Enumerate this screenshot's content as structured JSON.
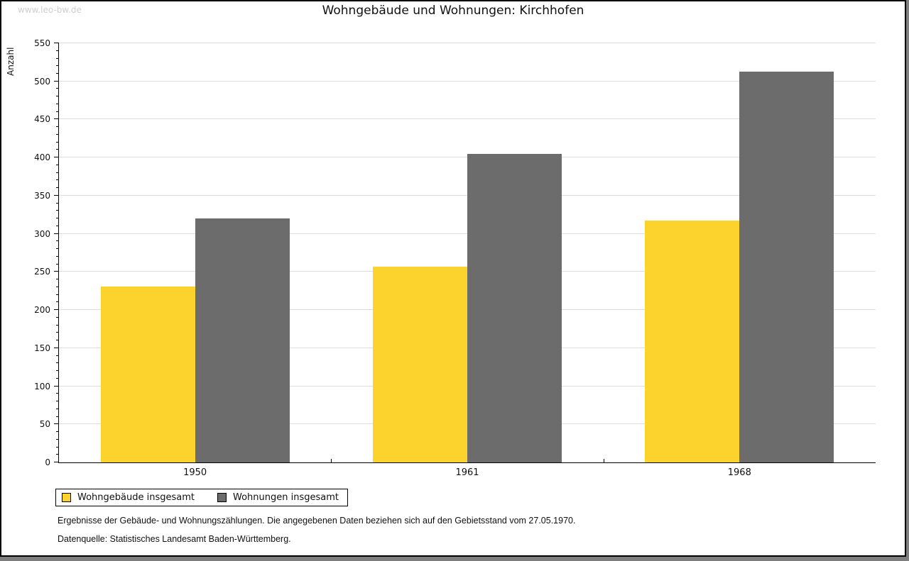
{
  "watermark": "www.leo-bw.de",
  "footnotes": [
    "Ergebnisse der Gebäude- und Wohnungszählungen. Die angegebenen Daten beziehen sich auf den Gebietsstand vom 27.05.1970.",
    "Datenquelle: Statistisches Landesamt Baden-Württemberg."
  ],
  "colors": {
    "page_background": "#7f7f7f",
    "chart_background": "#ffffff",
    "gridline": "#dddddd",
    "axis": "#000000",
    "watermark_text": "#cfcfcf",
    "bar_yellow": "#fcd32d",
    "bar_gray": "#6c6c6c"
  },
  "chart_data": {
    "type": "bar",
    "title": "Wohngebäude und Wohnungen: Kirchhofen",
    "xlabel": "",
    "ylabel": "Anzahl",
    "categories": [
      "1950",
      "1961",
      "1968"
    ],
    "series": [
      {
        "name": "Wohngebäude insgesamt",
        "color": "#fcd32d",
        "values": [
          231,
          257,
          317
        ]
      },
      {
        "name": "Wohnungen insgesamt",
        "color": "#6c6c6c",
        "values": [
          320,
          405,
          513
        ]
      }
    ],
    "ylim": [
      0,
      550
    ],
    "y_major_step": 50,
    "y_minor_step": 10,
    "grid": true,
    "legend_position": "bottom-left"
  }
}
